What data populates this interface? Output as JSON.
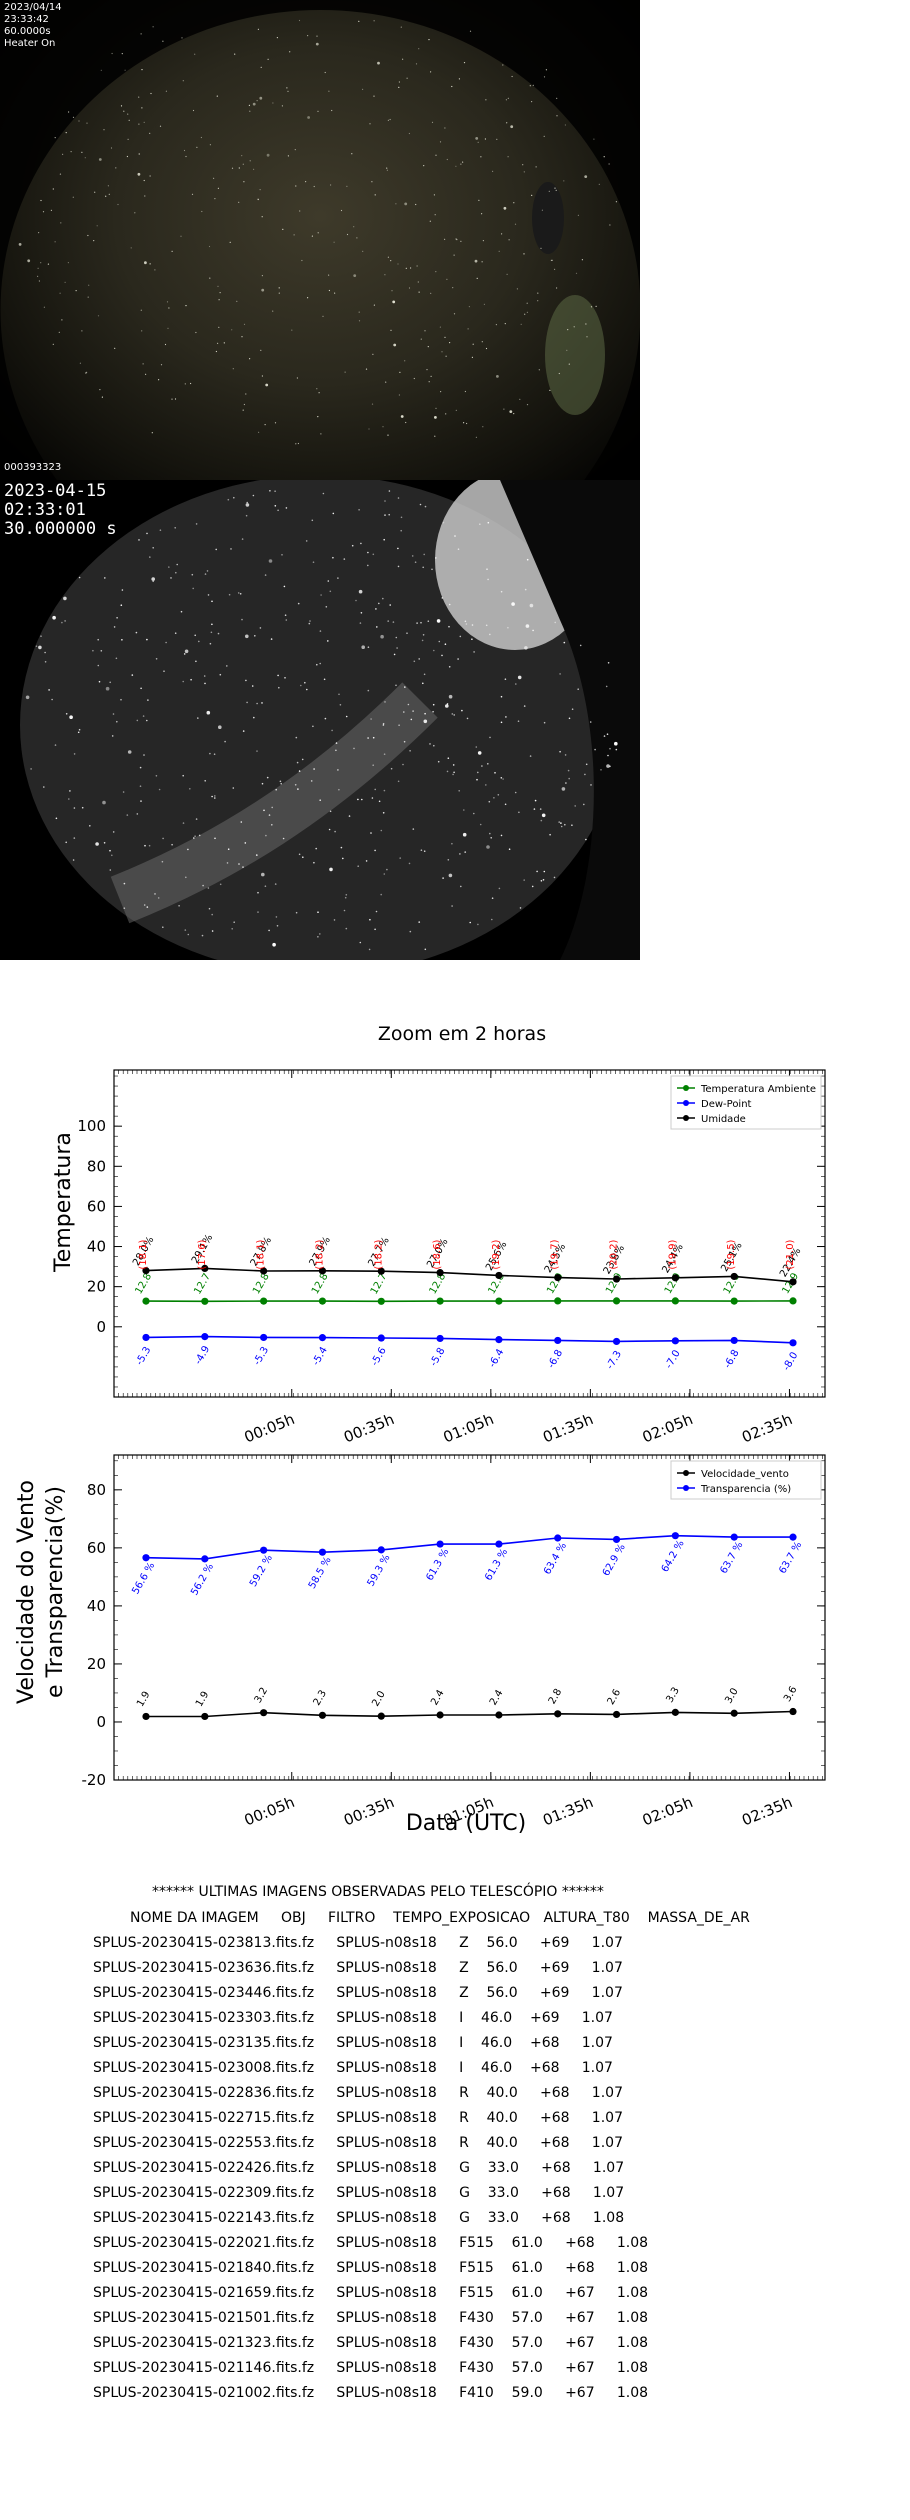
{
  "camera1": {
    "lines": [
      "2023/04/14",
      "23:33:42",
      "60.0000s",
      "Heater On"
    ],
    "frame_id": "000393323"
  },
  "camera2": {
    "lines": [
      "2023-04-15",
      "02:33:01",
      "30.000000 s"
    ]
  },
  "chart_data": [
    {
      "type": "line",
      "title": "Zoom em 2 horas",
      "xlabel": "",
      "ylabel": "Temperatura",
      "x_ticks": [
        "00:05h",
        "00:35h",
        "01:05h",
        "01:35h",
        "02:05h",
        "02:35h"
      ],
      "y_ticks": [
        0,
        20,
        40,
        60,
        80,
        100
      ],
      "legend_position": "top-right",
      "series": [
        {
          "name": "Temperatura Ambiente",
          "color": "#008000",
          "values": [
            12.8,
            12.7,
            12.8,
            12.8,
            12.7,
            12.8,
            12.8,
            12.9,
            12.9,
            12.9,
            12.8,
            12.9
          ],
          "labels": [
            "12.8",
            "12.7",
            "12.8",
            "12.8",
            "12.7",
            "12.8",
            "12.8",
            "12.9",
            "12.9",
            "12.9",
            "12.8",
            "12.9"
          ]
        },
        {
          "name": "Dew-Point",
          "color": "#0000ff",
          "values": [
            -5.3,
            -4.9,
            -5.3,
            -5.4,
            -5.6,
            -5.8,
            -6.4,
            -6.8,
            -7.3,
            -7.0,
            -6.8,
            -8.0
          ],
          "labels": [
            "-5.3",
            "-4.9",
            "-5.3",
            "-5.4",
            "-5.6",
            "-5.8",
            "-6.4",
            "-6.8",
            "-7.3",
            "-7.0",
            "-6.8",
            "-8.0"
          ]
        },
        {
          "name": "Umidade",
          "color": "#000000",
          "values": [
            28.0,
            29.1,
            27.8,
            27.9,
            27.7,
            27.0,
            25.6,
            24.5,
            23.8,
            24.4,
            25.1,
            22.4
          ],
          "labels": [
            "28.0%",
            "29.1%",
            "27.8%",
            "27.9%",
            "27.7%",
            "27.0%",
            "25.6%",
            "24.5%",
            "23.8%",
            "24.4%",
            "25.1%",
            "22.4%"
          ]
        }
      ],
      "red_labels": [
        "(18.1)",
        "(17.6)",
        "(18.1)",
        "(18.2)",
        "(18.2)",
        "(18.6)",
        "(19.2)",
        "(19.7)",
        "(20.2)",
        "(19.9)",
        "(19.5)",
        "(21.0)"
      ]
    },
    {
      "type": "line",
      "xlabel": "Data (UTC)",
      "ylabel_lines": [
        "Velocidade do Vento",
        "e Transparencia(%)"
      ],
      "x_ticks": [
        "00:05h",
        "00:35h",
        "01:05h",
        "01:35h",
        "02:05h",
        "02:35h"
      ],
      "y_ticks": [
        -20,
        0,
        20,
        40,
        60,
        80
      ],
      "ylim": [
        -20,
        92
      ],
      "legend_position": "top-right",
      "series": [
        {
          "name": "Velocidade_vento",
          "color": "#000000",
          "values": [
            1.9,
            1.9,
            3.2,
            2.3,
            2.0,
            2.4,
            2.4,
            2.8,
            2.6,
            3.3,
            3.0,
            3.6
          ],
          "labels": [
            "1.9",
            "1.9",
            "3.2",
            "2.3",
            "2.0",
            "2.4",
            "2.4",
            "2.8",
            "2.6",
            "3.3",
            "3.0",
            "3.6"
          ]
        },
        {
          "name": "Transparencia (%)",
          "color": "#0000ff",
          "values": [
            56.6,
            56.2,
            59.2,
            58.5,
            59.3,
            61.3,
            61.3,
            63.4,
            62.9,
            64.2,
            63.7,
            63.7
          ],
          "labels": [
            "56.6 %",
            "56.2 %",
            "59.2 %",
            "58.5 %",
            "59.3 %",
            "61.3 %",
            "61.3 %",
            "63.4 %",
            "62.9 %",
            "64.2 %",
            "63.7 %",
            "63.7 %"
          ]
        }
      ]
    }
  ],
  "table": {
    "title": "****** ULTIMAS IMAGENS OBSERVADAS PELO TELESCÓPIO ******",
    "header": "NOME DA IMAGEM     OBJ     FILTRO    TEMPO_EXPOSICAO   ALTURA_T80    MASSA_DE_AR",
    "rows": [
      "SPLUS-20230415-023813.fits.fz     SPLUS-n08s18     Z    56.0     +69     1.07",
      "SPLUS-20230415-023636.fits.fz     SPLUS-n08s18     Z    56.0     +69     1.07",
      "SPLUS-20230415-023446.fits.fz     SPLUS-n08s18     Z    56.0     +69     1.07",
      "SPLUS-20230415-023303.fits.fz     SPLUS-n08s18     I    46.0    +69     1.07",
      "SPLUS-20230415-023135.fits.fz     SPLUS-n08s18     I    46.0    +68     1.07",
      "SPLUS-20230415-023008.fits.fz     SPLUS-n08s18     I    46.0    +68     1.07",
      "SPLUS-20230415-022836.fits.fz     SPLUS-n08s18     R    40.0     +68     1.07",
      "SPLUS-20230415-022715.fits.fz     SPLUS-n08s18     R    40.0     +68     1.07",
      "SPLUS-20230415-022553.fits.fz     SPLUS-n08s18     R    40.0     +68     1.07",
      "SPLUS-20230415-022426.fits.fz     SPLUS-n08s18     G    33.0     +68     1.07",
      "SPLUS-20230415-022309.fits.fz     SPLUS-n08s18     G    33.0     +68     1.07",
      "SPLUS-20230415-022143.fits.fz     SPLUS-n08s18     G    33.0     +68     1.08",
      "SPLUS-20230415-022021.fits.fz     SPLUS-n08s18     F515    61.0     +68     1.08",
      "SPLUS-20230415-021840.fits.fz     SPLUS-n08s18     F515    61.0     +68     1.08",
      "SPLUS-20230415-021659.fits.fz     SPLUS-n08s18     F515    61.0     +67     1.08",
      "SPLUS-20230415-021501.fits.fz     SPLUS-n08s18     F430    57.0     +67     1.08",
      "SPLUS-20230415-021323.fits.fz     SPLUS-n08s18     F430    57.0     +67     1.08",
      "SPLUS-20230415-021146.fits.fz     SPLUS-n08s18     F430    57.0     +67     1.08",
      "SPLUS-20230415-021002.fits.fz     SPLUS-n08s18     F410    59.0     +67     1.08"
    ]
  }
}
